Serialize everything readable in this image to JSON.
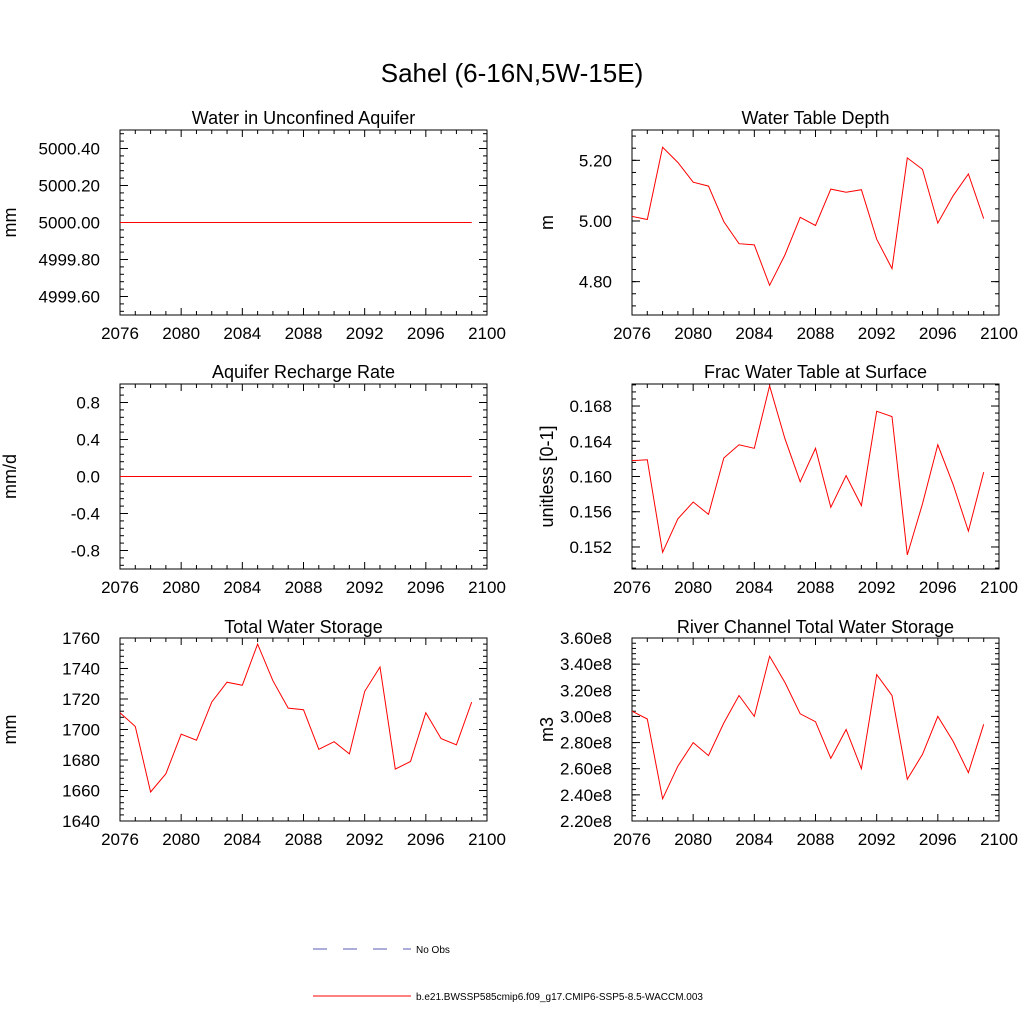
{
  "title": "Sahel (6-16N,5W-15E)",
  "colors": {
    "series": "#ff0000",
    "no_obs": "#5b5bb5",
    "axis": "#000000"
  },
  "legend": {
    "items": [
      {
        "label": "No Obs",
        "style": "dashed",
        "color": "#5b5bb5"
      },
      {
        "label": "b.e21.BWSSP585cmip6.f09_g17.CMIP6-SSP5-8.5-WACCM.003",
        "style": "solid",
        "color": "#ff0000"
      }
    ]
  },
  "chart_data": [
    {
      "type": "line",
      "title": "Water in Unconfined Aquifer",
      "ylabel": "mm",
      "xlim": [
        2076,
        2100
      ],
      "ylim": [
        4999.5,
        5000.5
      ],
      "x_ticks": [
        "2076",
        "2080",
        "2084",
        "2088",
        "2092",
        "2096",
        "2100"
      ],
      "y_ticks": [
        4999.6,
        4999.8,
        5000.0,
        5000.2,
        5000.4
      ],
      "y_tick_labels": [
        "4999.60",
        "4999.80",
        "5000.00",
        "5000.20",
        "5000.40"
      ],
      "y_minor_step": 0.04,
      "x": [
        2076,
        2077,
        2078,
        2079,
        2080,
        2081,
        2082,
        2083,
        2084,
        2085,
        2086,
        2087,
        2088,
        2089,
        2090,
        2091,
        2092,
        2093,
        2094,
        2095,
        2096,
        2097,
        2098,
        2099
      ],
      "values": [
        5000.0,
        5000.0,
        5000.0,
        5000.0,
        5000.0,
        5000.0,
        5000.0,
        5000.0,
        5000.0,
        5000.0,
        5000.0,
        5000.0,
        5000.0,
        5000.0,
        5000.0,
        5000.0,
        5000.0,
        5000.0,
        5000.0,
        5000.0,
        5000.0,
        5000.0,
        5000.0,
        5000.0
      ]
    },
    {
      "type": "line",
      "title": "Water Table Depth",
      "ylabel": "m",
      "xlim": [
        2076,
        2100
      ],
      "ylim": [
        4.69,
        5.3
      ],
      "x_ticks": [
        "2076",
        "2080",
        "2084",
        "2088",
        "2092",
        "2096",
        "2100"
      ],
      "y_ticks": [
        4.8,
        5.0,
        5.2
      ],
      "y_tick_labels": [
        "4.80",
        "5.00",
        "5.20"
      ],
      "y_minor_step": 0.04,
      "x": [
        2076,
        2077,
        2078,
        2079,
        2080,
        2081,
        2082,
        2083,
        2084,
        2085,
        2086,
        2087,
        2088,
        2089,
        2090,
        2091,
        2092,
        2093,
        2094,
        2095,
        2096,
        2097,
        2098,
        2099
      ],
      "values": [
        5.015,
        5.005,
        5.243,
        5.193,
        5.128,
        5.115,
        4.998,
        4.925,
        4.921,
        4.788,
        4.888,
        5.012,
        4.985,
        5.105,
        5.095,
        5.103,
        4.94,
        4.843,
        5.208,
        5.17,
        4.993,
        5.083,
        5.155,
        5.008
      ]
    },
    {
      "type": "line",
      "title": "Aquifer Recharge Rate",
      "ylabel": "mm/d",
      "xlim": [
        2076,
        2100
      ],
      "ylim": [
        -1.0,
        1.0
      ],
      "x_ticks": [
        "2076",
        "2080",
        "2084",
        "2088",
        "2092",
        "2096",
        "2100"
      ],
      "y_ticks": [
        -0.8,
        -0.4,
        0.0,
        0.4,
        0.8
      ],
      "y_tick_labels": [
        "-0.8",
        "-0.4",
        "0.0",
        "0.4",
        "0.8"
      ],
      "y_minor_step": 0.08,
      "x": [
        2076,
        2077,
        2078,
        2079,
        2080,
        2081,
        2082,
        2083,
        2084,
        2085,
        2086,
        2087,
        2088,
        2089,
        2090,
        2091,
        2092,
        2093,
        2094,
        2095,
        2096,
        2097,
        2098,
        2099
      ],
      "values": [
        0,
        0,
        0,
        0,
        0,
        0,
        0,
        0,
        0,
        0,
        0,
        0,
        0,
        0,
        0,
        0,
        0,
        0,
        0,
        0,
        0,
        0,
        0,
        0
      ]
    },
    {
      "type": "line",
      "title": "Frac Water Table at Surface",
      "ylabel": "unitless [0-1]",
      "xlim": [
        2076,
        2100
      ],
      "ylim": [
        0.1495,
        0.1705
      ],
      "x_ticks": [
        "2076",
        "2080",
        "2084",
        "2088",
        "2092",
        "2096",
        "2100"
      ],
      "y_ticks": [
        0.152,
        0.156,
        0.16,
        0.164,
        0.168
      ],
      "y_tick_labels": [
        "0.152",
        "0.156",
        "0.160",
        "0.164",
        "0.168"
      ],
      "y_minor_step": 0.0008,
      "x": [
        2076,
        2077,
        2078,
        2079,
        2080,
        2081,
        2082,
        2083,
        2084,
        2085,
        2086,
        2087,
        2088,
        2089,
        2090,
        2091,
        2092,
        2093,
        2094,
        2095,
        2096,
        2097,
        2098,
        2099
      ],
      "values": [
        0.1618,
        0.1619,
        0.1514,
        0.1552,
        0.1571,
        0.1557,
        0.1621,
        0.1636,
        0.1632,
        0.1703,
        0.1643,
        0.1594,
        0.1632,
        0.1565,
        0.1601,
        0.1567,
        0.1674,
        0.1668,
        0.1511,
        0.1569,
        0.1636,
        0.1591,
        0.1538,
        0.1605
      ]
    },
    {
      "type": "line",
      "title": "Total Water Storage",
      "ylabel": "mm",
      "xlim": [
        2076,
        2100
      ],
      "ylim": [
        1640,
        1760
      ],
      "x_ticks": [
        "2076",
        "2080",
        "2084",
        "2088",
        "2092",
        "2096",
        "2100"
      ],
      "y_ticks": [
        1640,
        1660,
        1680,
        1700,
        1720,
        1740,
        1760
      ],
      "y_tick_labels": [
        "1640",
        "1660",
        "1680",
        "1700",
        "1720",
        "1740",
        "1760"
      ],
      "y_minor_step": 4,
      "x": [
        2076,
        2077,
        2078,
        2079,
        2080,
        2081,
        2082,
        2083,
        2084,
        2085,
        2086,
        2087,
        2088,
        2089,
        2090,
        2091,
        2092,
        2093,
        2094,
        2095,
        2096,
        2097,
        2098,
        2099
      ],
      "values": [
        1711,
        1702,
        1659,
        1671,
        1697,
        1693,
        1718,
        1731,
        1729,
        1756,
        1732,
        1714,
        1713,
        1687,
        1692,
        1684,
        1725,
        1741,
        1674,
        1679,
        1711,
        1694,
        1690,
        1718
      ]
    },
    {
      "type": "line",
      "title": "River Channel Total Water Storage",
      "ylabel": "m3",
      "xlim": [
        2076,
        2100
      ],
      "ylim": [
        220000000,
        360000000
      ],
      "x_ticks": [
        "2076",
        "2080",
        "2084",
        "2088",
        "2092",
        "2096",
        "2100"
      ],
      "y_ticks": [
        220000000,
        240000000,
        260000000,
        280000000,
        300000000,
        320000000,
        340000000,
        360000000
      ],
      "y_tick_labels": [
        "2.20e8",
        "2.40e8",
        "2.60e8",
        "2.80e8",
        "3.00e8",
        "3.20e8",
        "3.40e8",
        "3.60e8"
      ],
      "y_minor_step": 4000000,
      "x": [
        2076,
        2077,
        2078,
        2079,
        2080,
        2081,
        2082,
        2083,
        2084,
        2085,
        2086,
        2087,
        2088,
        2089,
        2090,
        2091,
        2092,
        2093,
        2094,
        2095,
        2096,
        2097,
        2098,
        2099
      ],
      "values": [
        304000000,
        298000000,
        237000000,
        262000000,
        280000000,
        270000000,
        295000000,
        316000000,
        300000000,
        346000000,
        326000000,
        302000000,
        296000000,
        268000000,
        290000000,
        260000000,
        332000000,
        316000000,
        252000000,
        271000000,
        300000000,
        281000000,
        257000000,
        294000000
      ]
    }
  ]
}
